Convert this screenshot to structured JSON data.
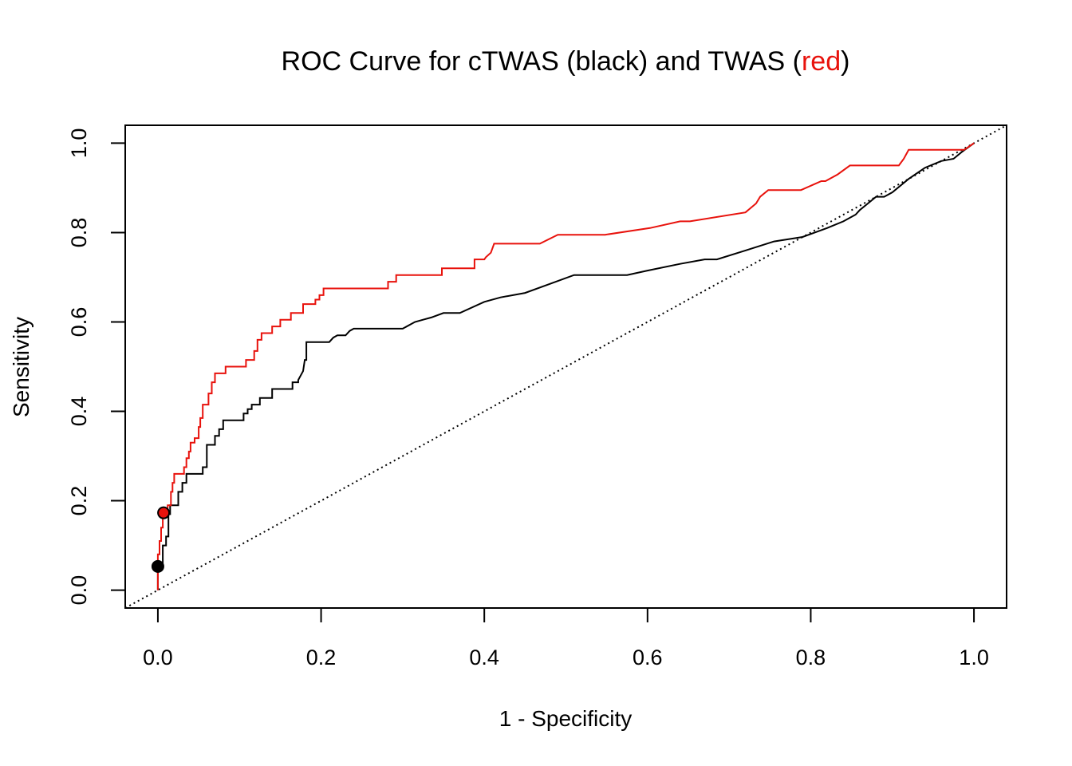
{
  "chart_data": {
    "type": "line",
    "title": {
      "before": "ROC Curve for cTWAS (black) and TWAS (",
      "highlight": "red",
      "after": ")"
    },
    "xlabel": "1 - Specificity",
    "ylabel": "Sensitivity",
    "xlim": [
      -0.04,
      1.04
    ],
    "ylim": [
      -0.04,
      1.04
    ],
    "x_ticks": [
      0.0,
      0.2,
      0.4,
      0.6,
      0.8,
      1.0
    ],
    "y_ticks": [
      0.0,
      0.2,
      0.4,
      0.6,
      0.8,
      1.0
    ],
    "x_tick_labels": [
      "0.0",
      "0.2",
      "0.4",
      "0.6",
      "0.8",
      "1.0"
    ],
    "y_tick_labels": [
      "0.0",
      "0.2",
      "0.4",
      "0.6",
      "0.8",
      "1.0"
    ],
    "grid": false,
    "legend": "none",
    "reference_line": {
      "x": [
        0,
        1
      ],
      "y": [
        0,
        1
      ],
      "style": "dotted"
    },
    "series": [
      {
        "key": "ctwas",
        "color": "#000000",
        "x": [
          0.0,
          0.0,
          0.002,
          0.002,
          0.006,
          0.006,
          0.01,
          0.01,
          0.013,
          0.013,
          0.015,
          0.015,
          0.025,
          0.025,
          0.03,
          0.03,
          0.035,
          0.035,
          0.04,
          0.04,
          0.055,
          0.055,
          0.06,
          0.06,
          0.062,
          0.062,
          0.07,
          0.07,
          0.075,
          0.075,
          0.08,
          0.08,
          0.09,
          0.09,
          0.105,
          0.105,
          0.11,
          0.11,
          0.115,
          0.115,
          0.125,
          0.125,
          0.14,
          0.14,
          0.165,
          0.165,
          0.172,
          0.172,
          0.178,
          0.18,
          0.182,
          0.182,
          0.21,
          0.215,
          0.22,
          0.23,
          0.235,
          0.24,
          0.3,
          0.315,
          0.325,
          0.335,
          0.35,
          0.37,
          0.4,
          0.42,
          0.45,
          0.48,
          0.51,
          0.545,
          0.575,
          0.6,
          0.64,
          0.67,
          0.685,
          0.72,
          0.755,
          0.79,
          0.82,
          0.84,
          0.855,
          0.86,
          0.87,
          0.88,
          0.89,
          0.9,
          0.92,
          0.94,
          0.96,
          0.975,
          0.985,
          1.0
        ],
        "y": [
          0.0,
          0.05,
          0.05,
          0.06,
          0.06,
          0.1,
          0.1,
          0.12,
          0.12,
          0.17,
          0.17,
          0.19,
          0.19,
          0.22,
          0.22,
          0.24,
          0.24,
          0.26,
          0.26,
          0.26,
          0.26,
          0.275,
          0.275,
          0.325,
          0.325,
          0.325,
          0.325,
          0.345,
          0.345,
          0.36,
          0.36,
          0.38,
          0.38,
          0.38,
          0.38,
          0.395,
          0.395,
          0.405,
          0.405,
          0.415,
          0.415,
          0.43,
          0.43,
          0.45,
          0.45,
          0.465,
          0.465,
          0.47,
          0.49,
          0.515,
          0.515,
          0.555,
          0.555,
          0.565,
          0.57,
          0.57,
          0.58,
          0.585,
          0.585,
          0.6,
          0.605,
          0.61,
          0.62,
          0.62,
          0.645,
          0.655,
          0.665,
          0.685,
          0.705,
          0.705,
          0.705,
          0.715,
          0.73,
          0.74,
          0.74,
          0.76,
          0.78,
          0.79,
          0.81,
          0.825,
          0.84,
          0.85,
          0.865,
          0.88,
          0.88,
          0.89,
          0.92,
          0.945,
          0.96,
          0.965,
          0.98,
          1.0
        ]
      },
      {
        "key": "twas",
        "color": "#e8120c",
        "x": [
          0.0,
          0.0,
          0.002,
          0.002,
          0.004,
          0.004,
          0.006,
          0.006,
          0.008,
          0.008,
          0.012,
          0.012,
          0.016,
          0.016,
          0.018,
          0.018,
          0.02,
          0.02,
          0.032,
          0.032,
          0.035,
          0.035,
          0.038,
          0.038,
          0.04,
          0.04,
          0.045,
          0.045,
          0.05,
          0.05,
          0.052,
          0.052,
          0.055,
          0.055,
          0.062,
          0.062,
          0.066,
          0.066,
          0.07,
          0.07,
          0.083,
          0.083,
          0.108,
          0.108,
          0.118,
          0.118,
          0.122,
          0.122,
          0.127,
          0.127,
          0.14,
          0.14,
          0.15,
          0.15,
          0.163,
          0.163,
          0.178,
          0.178,
          0.193,
          0.193,
          0.198,
          0.198,
          0.203,
          0.203,
          0.282,
          0.282,
          0.292,
          0.292,
          0.348,
          0.348,
          0.388,
          0.388,
          0.4,
          0.402,
          0.408,
          0.412,
          0.412,
          0.468,
          0.468,
          0.49,
          0.49,
          0.548,
          0.548,
          0.603,
          0.603,
          0.64,
          0.64,
          0.652,
          0.652,
          0.72,
          0.72,
          0.733,
          0.733,
          0.738,
          0.738,
          0.748,
          0.748,
          0.788,
          0.788,
          0.813,
          0.813,
          0.818,
          0.818,
          0.833,
          0.833,
          0.848,
          0.848,
          0.908,
          0.908,
          0.914,
          0.914,
          0.92,
          0.92,
          0.988,
          0.988,
          1.0
        ],
        "y": [
          0.0,
          0.08,
          0.08,
          0.11,
          0.11,
          0.14,
          0.14,
          0.17,
          0.17,
          0.175,
          0.175,
          0.19,
          0.19,
          0.22,
          0.22,
          0.24,
          0.24,
          0.26,
          0.26,
          0.275,
          0.275,
          0.295,
          0.295,
          0.31,
          0.31,
          0.33,
          0.33,
          0.34,
          0.34,
          0.365,
          0.365,
          0.385,
          0.385,
          0.415,
          0.415,
          0.44,
          0.44,
          0.465,
          0.465,
          0.485,
          0.485,
          0.5,
          0.5,
          0.515,
          0.515,
          0.535,
          0.535,
          0.56,
          0.56,
          0.575,
          0.575,
          0.59,
          0.59,
          0.605,
          0.605,
          0.62,
          0.62,
          0.64,
          0.64,
          0.65,
          0.65,
          0.66,
          0.66,
          0.675,
          0.675,
          0.69,
          0.69,
          0.705,
          0.705,
          0.72,
          0.72,
          0.74,
          0.74,
          0.745,
          0.755,
          0.775,
          0.775,
          0.775,
          0.775,
          0.795,
          0.795,
          0.795,
          0.795,
          0.81,
          0.81,
          0.825,
          0.825,
          0.825,
          0.825,
          0.845,
          0.845,
          0.865,
          0.865,
          0.88,
          0.88,
          0.895,
          0.895,
          0.895,
          0.895,
          0.915,
          0.915,
          0.915,
          0.915,
          0.93,
          0.93,
          0.95,
          0.95,
          0.95,
          0.95,
          0.965,
          0.965,
          0.985,
          0.985,
          0.985,
          0.985,
          1.0
        ]
      }
    ],
    "points": [
      {
        "key": "ctwas-point",
        "x": 0.0,
        "y": 0.053,
        "color": "#000000"
      },
      {
        "key": "twas-point",
        "x": 0.007,
        "y": 0.173,
        "color": "#e8120c"
      }
    ]
  }
}
